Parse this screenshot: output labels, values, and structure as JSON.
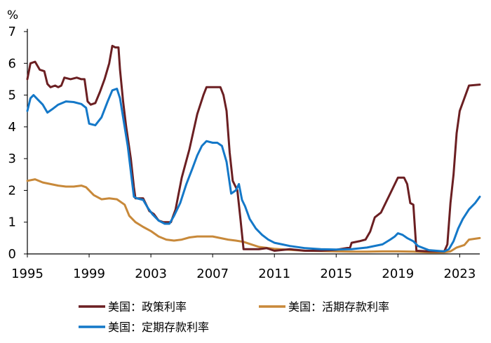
{
  "chart_data": {
    "type": "line",
    "title": "",
    "ylabel": "%",
    "xlabel": "",
    "ylim": [
      0,
      7
    ],
    "xlim": [
      1995,
      2024.3
    ],
    "y_ticks": [
      "0",
      "1",
      "2",
      "3",
      "4",
      "5",
      "6",
      "7"
    ],
    "x_ticks": [
      "1995",
      "1999",
      "2003",
      "2007",
      "2011",
      "2015",
      "2019",
      "2023"
    ],
    "legend_position": "bottom",
    "series": [
      {
        "name": "美国：政策利率",
        "color": "#6b1f22",
        "points": [
          [
            1995.0,
            5.5
          ],
          [
            1995.2,
            6.0
          ],
          [
            1995.5,
            6.05
          ],
          [
            1995.8,
            5.8
          ],
          [
            1996.1,
            5.75
          ],
          [
            1996.3,
            5.35
          ],
          [
            1996.5,
            5.25
          ],
          [
            1996.8,
            5.3
          ],
          [
            1997.0,
            5.25
          ],
          [
            1997.2,
            5.3
          ],
          [
            1997.4,
            5.55
          ],
          [
            1997.8,
            5.5
          ],
          [
            1998.2,
            5.55
          ],
          [
            1998.5,
            5.5
          ],
          [
            1998.7,
            5.5
          ],
          [
            1998.9,
            4.8
          ],
          [
            1999.1,
            4.7
          ],
          [
            1999.4,
            4.75
          ],
          [
            1999.7,
            5.1
          ],
          [
            2000.0,
            5.5
          ],
          [
            2000.3,
            6.0
          ],
          [
            2000.5,
            6.55
          ],
          [
            2000.7,
            6.5
          ],
          [
            2000.9,
            6.5
          ],
          [
            2001.0,
            5.8
          ],
          [
            2001.2,
            4.8
          ],
          [
            2001.4,
            4.0
          ],
          [
            2001.7,
            3.0
          ],
          [
            2001.9,
            2.1
          ],
          [
            2002.0,
            1.75
          ],
          [
            2002.5,
            1.75
          ],
          [
            2002.9,
            1.35
          ],
          [
            2003.2,
            1.25
          ],
          [
            2003.5,
            1.05
          ],
          [
            2003.8,
            1.0
          ],
          [
            2004.3,
            1.0
          ],
          [
            2004.6,
            1.4
          ],
          [
            2005.0,
            2.4
          ],
          [
            2005.5,
            3.3
          ],
          [
            2006.0,
            4.4
          ],
          [
            2006.4,
            5.0
          ],
          [
            2006.6,
            5.25
          ],
          [
            2007.0,
            5.25
          ],
          [
            2007.5,
            5.25
          ],
          [
            2007.7,
            5.0
          ],
          [
            2007.9,
            4.5
          ],
          [
            2008.1,
            3.2
          ],
          [
            2008.3,
            2.3
          ],
          [
            2008.6,
            2.0
          ],
          [
            2008.8,
            1.1
          ],
          [
            2009.0,
            0.15
          ],
          [
            2009.5,
            0.15
          ],
          [
            2010.0,
            0.15
          ],
          [
            2010.5,
            0.18
          ],
          [
            2011.0,
            0.1
          ],
          [
            2012.0,
            0.15
          ],
          [
            2013.0,
            0.1
          ],
          [
            2014.0,
            0.1
          ],
          [
            2015.0,
            0.13
          ],
          [
            2015.9,
            0.2
          ],
          [
            2016.0,
            0.35
          ],
          [
            2016.5,
            0.4
          ],
          [
            2016.9,
            0.45
          ],
          [
            2017.2,
            0.7
          ],
          [
            2017.5,
            1.15
          ],
          [
            2017.9,
            1.3
          ],
          [
            2018.2,
            1.6
          ],
          [
            2018.5,
            1.9
          ],
          [
            2018.8,
            2.2
          ],
          [
            2019.0,
            2.4
          ],
          [
            2019.4,
            2.4
          ],
          [
            2019.6,
            2.2
          ],
          [
            2019.8,
            1.6
          ],
          [
            2020.0,
            1.55
          ],
          [
            2020.2,
            0.1
          ],
          [
            2021.0,
            0.08
          ],
          [
            2022.0,
            0.08
          ],
          [
            2022.2,
            0.3
          ],
          [
            2022.4,
            1.6
          ],
          [
            2022.6,
            2.5
          ],
          [
            2022.8,
            3.8
          ],
          [
            2023.0,
            4.5
          ],
          [
            2023.3,
            4.9
          ],
          [
            2023.6,
            5.3
          ],
          [
            2024.3,
            5.33
          ]
        ]
      },
      {
        "name": "美国：活期存款利率",
        "color": "#c8893a",
        "points": [
          [
            1995.0,
            2.3
          ],
          [
            1995.5,
            2.35
          ],
          [
            1996.0,
            2.25
          ],
          [
            1996.5,
            2.2
          ],
          [
            1997.0,
            2.15
          ],
          [
            1997.5,
            2.12
          ],
          [
            1998.0,
            2.12
          ],
          [
            1998.5,
            2.15
          ],
          [
            1998.8,
            2.1
          ],
          [
            1999.0,
            2.0
          ],
          [
            1999.3,
            1.85
          ],
          [
            1999.8,
            1.72
          ],
          [
            2000.3,
            1.75
          ],
          [
            2000.8,
            1.72
          ],
          [
            2001.3,
            1.55
          ],
          [
            2001.6,
            1.2
          ],
          [
            2002.0,
            1.0
          ],
          [
            2002.5,
            0.85
          ],
          [
            2003.0,
            0.72
          ],
          [
            2003.5,
            0.55
          ],
          [
            2004.0,
            0.45
          ],
          [
            2004.5,
            0.42
          ],
          [
            2005.0,
            0.45
          ],
          [
            2005.5,
            0.52
          ],
          [
            2006.0,
            0.55
          ],
          [
            2006.5,
            0.55
          ],
          [
            2007.0,
            0.55
          ],
          [
            2007.5,
            0.5
          ],
          [
            2008.0,
            0.45
          ],
          [
            2008.5,
            0.42
          ],
          [
            2009.0,
            0.38
          ],
          [
            2009.5,
            0.3
          ],
          [
            2010.0,
            0.22
          ],
          [
            2011.0,
            0.16
          ],
          [
            2012.0,
            0.13
          ],
          [
            2013.0,
            0.1
          ],
          [
            2014.0,
            0.09
          ],
          [
            2015.0,
            0.08
          ],
          [
            2016.0,
            0.07
          ],
          [
            2017.0,
            0.07
          ],
          [
            2018.0,
            0.08
          ],
          [
            2019.0,
            0.08
          ],
          [
            2020.0,
            0.07
          ],
          [
            2021.0,
            0.05
          ],
          [
            2022.0,
            0.05
          ],
          [
            2022.4,
            0.08
          ],
          [
            2022.8,
            0.2
          ],
          [
            2023.3,
            0.28
          ],
          [
            2023.6,
            0.45
          ],
          [
            2024.3,
            0.5
          ]
        ]
      },
      {
        "name": "美国：定期存款利率",
        "color": "#1478c8",
        "points": [
          [
            1995.0,
            4.5
          ],
          [
            1995.2,
            4.9
          ],
          [
            1995.4,
            5.0
          ],
          [
            1995.7,
            4.85
          ],
          [
            1996.0,
            4.7
          ],
          [
            1996.3,
            4.45
          ],
          [
            1996.6,
            4.55
          ],
          [
            1997.0,
            4.7
          ],
          [
            1997.5,
            4.8
          ],
          [
            1998.0,
            4.78
          ],
          [
            1998.5,
            4.72
          ],
          [
            1998.8,
            4.6
          ],
          [
            1999.0,
            4.1
          ],
          [
            1999.4,
            4.05
          ],
          [
            1999.8,
            4.3
          ],
          [
            2000.2,
            4.8
          ],
          [
            2000.5,
            5.15
          ],
          [
            2000.8,
            5.2
          ],
          [
            2001.0,
            4.9
          ],
          [
            2001.2,
            4.3
          ],
          [
            2001.5,
            3.4
          ],
          [
            2001.7,
            2.6
          ],
          [
            2001.9,
            1.8
          ],
          [
            2002.1,
            1.75
          ],
          [
            2002.5,
            1.7
          ],
          [
            2002.8,
            1.45
          ],
          [
            2003.1,
            1.25
          ],
          [
            2003.5,
            1.05
          ],
          [
            2003.9,
            0.95
          ],
          [
            2004.2,
            0.95
          ],
          [
            2004.5,
            1.2
          ],
          [
            2004.9,
            1.6
          ],
          [
            2005.3,
            2.2
          ],
          [
            2005.7,
            2.7
          ],
          [
            2006.0,
            3.1
          ],
          [
            2006.3,
            3.4
          ],
          [
            2006.6,
            3.55
          ],
          [
            2007.0,
            3.5
          ],
          [
            2007.3,
            3.5
          ],
          [
            2007.6,
            3.4
          ],
          [
            2007.9,
            2.9
          ],
          [
            2008.2,
            1.9
          ],
          [
            2008.5,
            2.0
          ],
          [
            2008.7,
            2.2
          ],
          [
            2008.9,
            1.7
          ],
          [
            2009.1,
            1.5
          ],
          [
            2009.4,
            1.1
          ],
          [
            2009.8,
            0.8
          ],
          [
            2010.2,
            0.6
          ],
          [
            2010.6,
            0.45
          ],
          [
            2011.0,
            0.35
          ],
          [
            2011.5,
            0.3
          ],
          [
            2012.0,
            0.25
          ],
          [
            2013.0,
            0.18
          ],
          [
            2014.0,
            0.15
          ],
          [
            2015.0,
            0.14
          ],
          [
            2016.0,
            0.15
          ],
          [
            2017.0,
            0.2
          ],
          [
            2018.0,
            0.3
          ],
          [
            2018.5,
            0.45
          ],
          [
            2018.8,
            0.55
          ],
          [
            2019.0,
            0.65
          ],
          [
            2019.3,
            0.6
          ],
          [
            2019.6,
            0.5
          ],
          [
            2020.0,
            0.4
          ],
          [
            2020.3,
            0.25
          ],
          [
            2021.0,
            0.12
          ],
          [
            2022.0,
            0.08
          ],
          [
            2022.3,
            0.15
          ],
          [
            2022.6,
            0.4
          ],
          [
            2022.9,
            0.8
          ],
          [
            2023.2,
            1.1
          ],
          [
            2023.6,
            1.4
          ],
          [
            2024.0,
            1.6
          ],
          [
            2024.3,
            1.8
          ]
        ]
      }
    ]
  }
}
